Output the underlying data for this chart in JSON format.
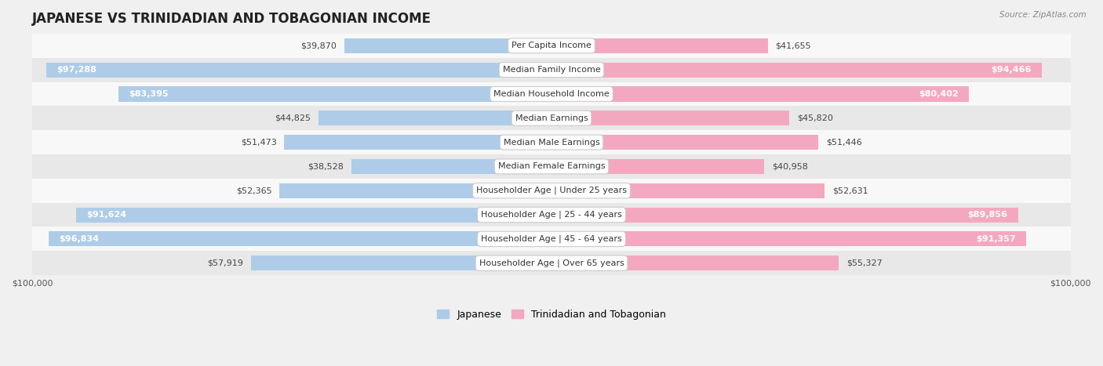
{
  "title": "JAPANESE VS TRINIDADIAN AND TOBAGONIAN INCOME",
  "source": "Source: ZipAtlas.com",
  "categories": [
    "Per Capita Income",
    "Median Family Income",
    "Median Household Income",
    "Median Earnings",
    "Median Male Earnings",
    "Median Female Earnings",
    "Householder Age | Under 25 years",
    "Householder Age | 25 - 44 years",
    "Householder Age | 45 - 64 years",
    "Householder Age | Over 65 years"
  ],
  "japanese_values": [
    39870,
    97288,
    83395,
    44825,
    51473,
    38528,
    52365,
    91624,
    96834,
    57919
  ],
  "trinidadian_values": [
    41655,
    94466,
    80402,
    45820,
    51446,
    40958,
    52631,
    89856,
    91357,
    55327
  ],
  "japanese_labels": [
    "$39,870",
    "$97,288",
    "$83,395",
    "$44,825",
    "$51,473",
    "$38,528",
    "$52,365",
    "$91,624",
    "$96,834",
    "$57,919"
  ],
  "trinidadian_labels": [
    "$41,655",
    "$94,466",
    "$80,402",
    "$45,820",
    "$51,446",
    "$40,958",
    "$52,631",
    "$89,856",
    "$91,357",
    "$55,327"
  ],
  "japanese_color": "#7bafd4",
  "trinidadian_color": "#f07fa0",
  "japanese_color_light": "#aecce8",
  "trinidadian_color_light": "#f4a8c0",
  "bar_height": 0.62,
  "max_value": 100000,
  "background_color": "#f0f0f0",
  "row_bg_light": "#f8f8f8",
  "row_bg_dark": "#e8e8e8",
  "inside_threshold": 70000,
  "legend_japanese": "Japanese",
  "legend_trinidadian": "Trinidadian and Tobagonian",
  "title_fontsize": 12,
  "label_fontsize": 8,
  "category_fontsize": 8,
  "axis_fontsize": 8,
  "legend_fontsize": 9
}
